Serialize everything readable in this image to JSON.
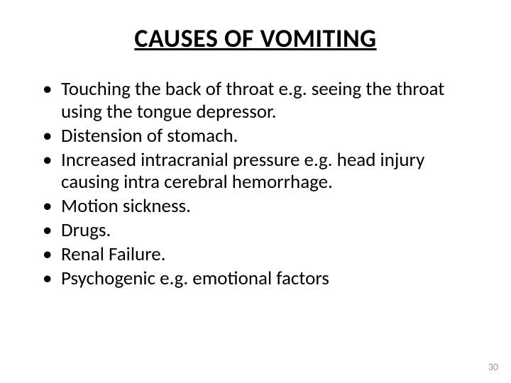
{
  "slide": {
    "title": "CAUSES OF VOMITING",
    "title_fontsize": 36,
    "title_color": "#000000",
    "background_color": "#ffffff",
    "bullets": [
      "Touching the back of throat e.g. seeing the throat using the tongue depressor.",
      "Distension of stomach.",
      "Increased intracranial pressure e.g. head injury causing intra cerebral hemorrhage.",
      "Motion sickness.",
      "Drugs.",
      "Renal Failure.",
      "Psychogenic e.g. emotional factors"
    ],
    "bullet_fontsize": 27,
    "bullet_line_height": 1.18,
    "bullet_color": "#000000",
    "bullet_marker": "•",
    "page_number": "30",
    "page_number_fontsize": 14,
    "page_number_color": "#9a9a9a"
  }
}
